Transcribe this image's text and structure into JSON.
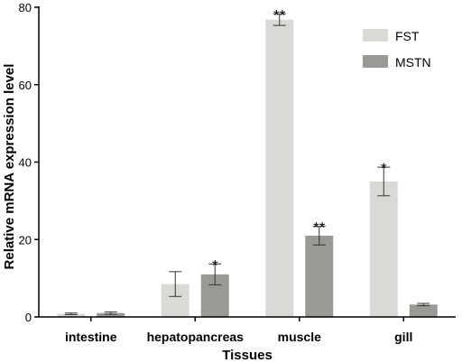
{
  "chart_data": {
    "type": "bar",
    "title": "",
    "xlabel": "Tissues",
    "ylabel": "Relative mRNA expression level",
    "ylim": [
      0,
      80
    ],
    "yticks": [
      0,
      20,
      40,
      60,
      80
    ],
    "categories": [
      "intestine",
      "hepatopancreas",
      "muscle",
      "gill"
    ],
    "series": [
      {
        "name": "FST",
        "color": "#d9dad5",
        "values": [
          0.8,
          8.5,
          76.8,
          35.0
        ],
        "errors": [
          0.2,
          3.2,
          1.5,
          3.7
        ],
        "significance": [
          "",
          "",
          "**",
          "*"
        ]
      },
      {
        "name": "MSTN",
        "color": "#999a93",
        "values": [
          1.0,
          11.0,
          21.0,
          3.2
        ],
        "errors": [
          0.3,
          2.7,
          2.4,
          0.3
        ],
        "significance": [
          "",
          "*",
          "**",
          ""
        ]
      }
    ],
    "legend_position": "top-right",
    "grid": false
  }
}
